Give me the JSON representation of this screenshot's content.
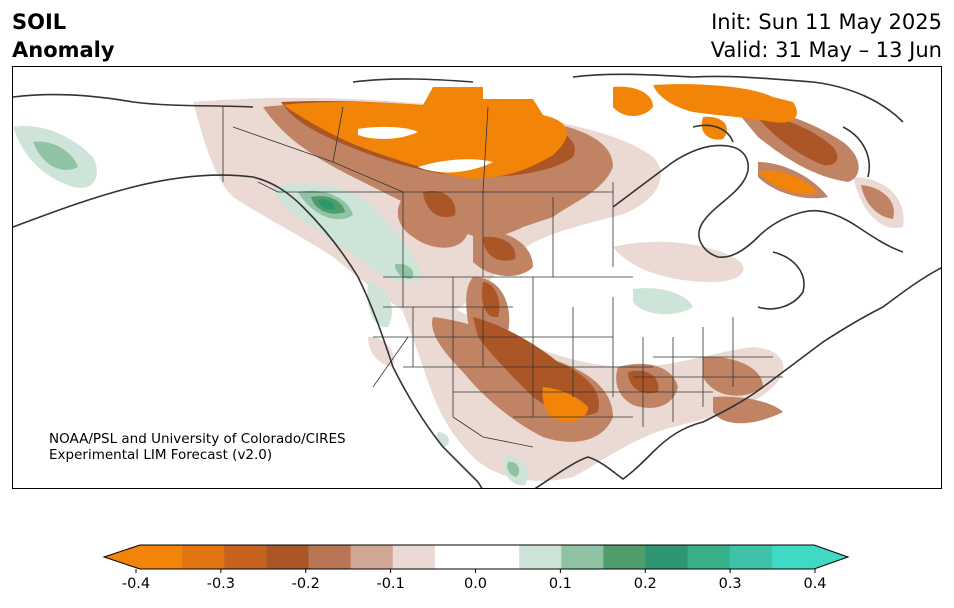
{
  "header": {
    "title_line1": "SOIL",
    "title_line2": "Anomaly",
    "init": "Init: Sun 11 May 2025",
    "valid": "Valid: 31 May – 13 Jun"
  },
  "credit": {
    "line1": "NOAA/PSL and University of Colorado/CIRES",
    "line2": "Experimental LIM Forecast (v2.0)"
  },
  "colorbar": {
    "ticks": [
      "-0.4",
      "-0.3",
      "-0.2",
      "-0.1",
      "0.0",
      "0.1",
      "0.2",
      "0.3",
      "0.4"
    ],
    "colors": [
      "#f28507",
      "#e07512",
      "#c6641f",
      "#ab5627",
      "#b97654",
      "#d2a694",
      "#eadad3",
      "#ffffff",
      "#ffffff",
      "#cfe4d8",
      "#8fc3a4",
      "#4f9d6b",
      "#2e9670",
      "#37b08a",
      "#3fc3a8",
      "#40d9c4"
    ],
    "min_color": "#f28507",
    "max_color": "#40d9c4"
  }
}
